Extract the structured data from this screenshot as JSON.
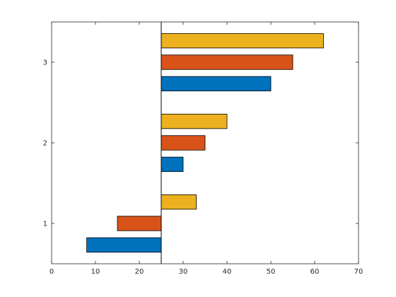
{
  "chart_data": {
    "type": "bar",
    "orientation": "horizontal",
    "baseline": 25,
    "categories": [
      "1",
      "2",
      "3"
    ],
    "series": [
      {
        "values": [
          8,
          30,
          50
        ],
        "color": "#0072BD"
      },
      {
        "values": [
          15,
          35,
          55
        ],
        "color": "#D95319"
      },
      {
        "values": [
          33,
          40,
          62
        ],
        "color": "#EDB120"
      }
    ],
    "xlim": [
      0,
      70
    ],
    "xticks": [
      "0",
      "10",
      "20",
      "30",
      "40",
      "50",
      "60",
      "70"
    ],
    "ylim": [
      0.5,
      3.5
    ],
    "yticks": [
      "1",
      "2",
      "3"
    ],
    "title": "",
    "xlabel": "",
    "ylabel": "",
    "grid": false,
    "legend": "none"
  }
}
